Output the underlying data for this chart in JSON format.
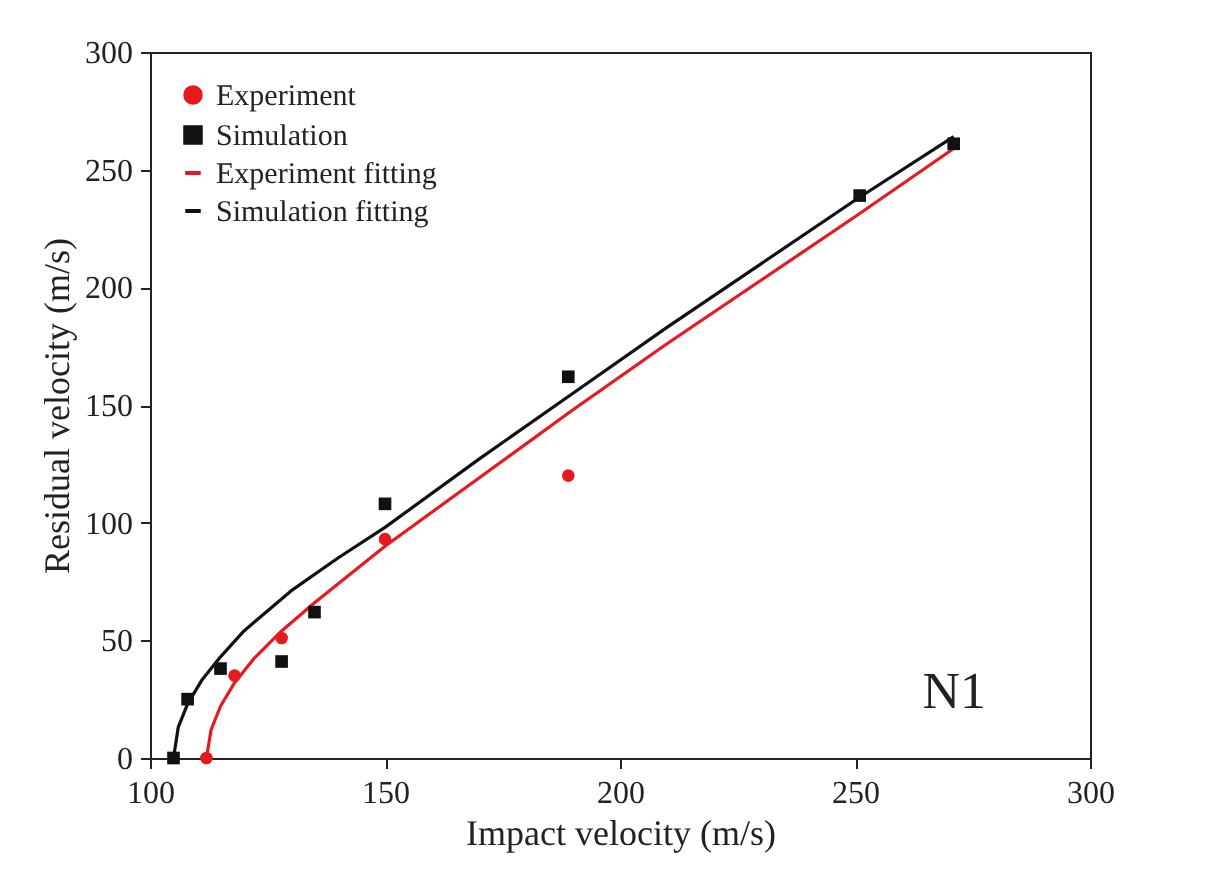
{
  "chart_data": {
    "type": "scatter",
    "xlabel": "Impact velocity (m/s)",
    "ylabel": "Residual velocity (m/s)",
    "xlim": [
      100,
      300
    ],
    "xticks": [
      100,
      150,
      200,
      250,
      300
    ],
    "ylim": [
      0,
      300
    ],
    "yticks": [
      0,
      50,
      100,
      150,
      200,
      250,
      300
    ],
    "grid": false,
    "legend": "top left",
    "annotations": [
      "N1"
    ],
    "series": [
      {
        "name": "Experiment",
        "marker": "circle",
        "color": "#e8191e",
        "x": [
          112,
          118,
          128,
          150,
          189
        ],
        "values": [
          0,
          35,
          51,
          93,
          120
        ]
      },
      {
        "name": "Simulation",
        "marker": "square",
        "color": "#111111",
        "x": [
          105,
          108,
          115,
          128,
          135,
          150,
          189,
          251,
          271
        ],
        "values": [
          0,
          25,
          38,
          41,
          62,
          108,
          162,
          239,
          261
        ]
      },
      {
        "name": "Experiment fitting",
        "type": "line",
        "marker": "none",
        "color": "#e8191e",
        "x": [
          112,
          113,
          115,
          118,
          122,
          128,
          135,
          150,
          170,
          190,
          210,
          230,
          250,
          271
        ],
        "values": [
          0,
          12,
          22,
          32,
          42,
          54,
          66,
          90,
          119,
          148,
          176,
          203,
          230,
          259
        ]
      },
      {
        "name": "Simulation fitting",
        "type": "line",
        "marker": "none",
        "color": "#111111",
        "x": [
          105,
          106,
          108,
          111,
          115,
          120,
          130,
          140,
          150,
          170,
          190,
          210,
          230,
          250,
          271
        ],
        "values": [
          0,
          13,
          23,
          33,
          43,
          54,
          71,
          85,
          98,
          127,
          155,
          183,
          210,
          237,
          264
        ]
      }
    ]
  }
}
